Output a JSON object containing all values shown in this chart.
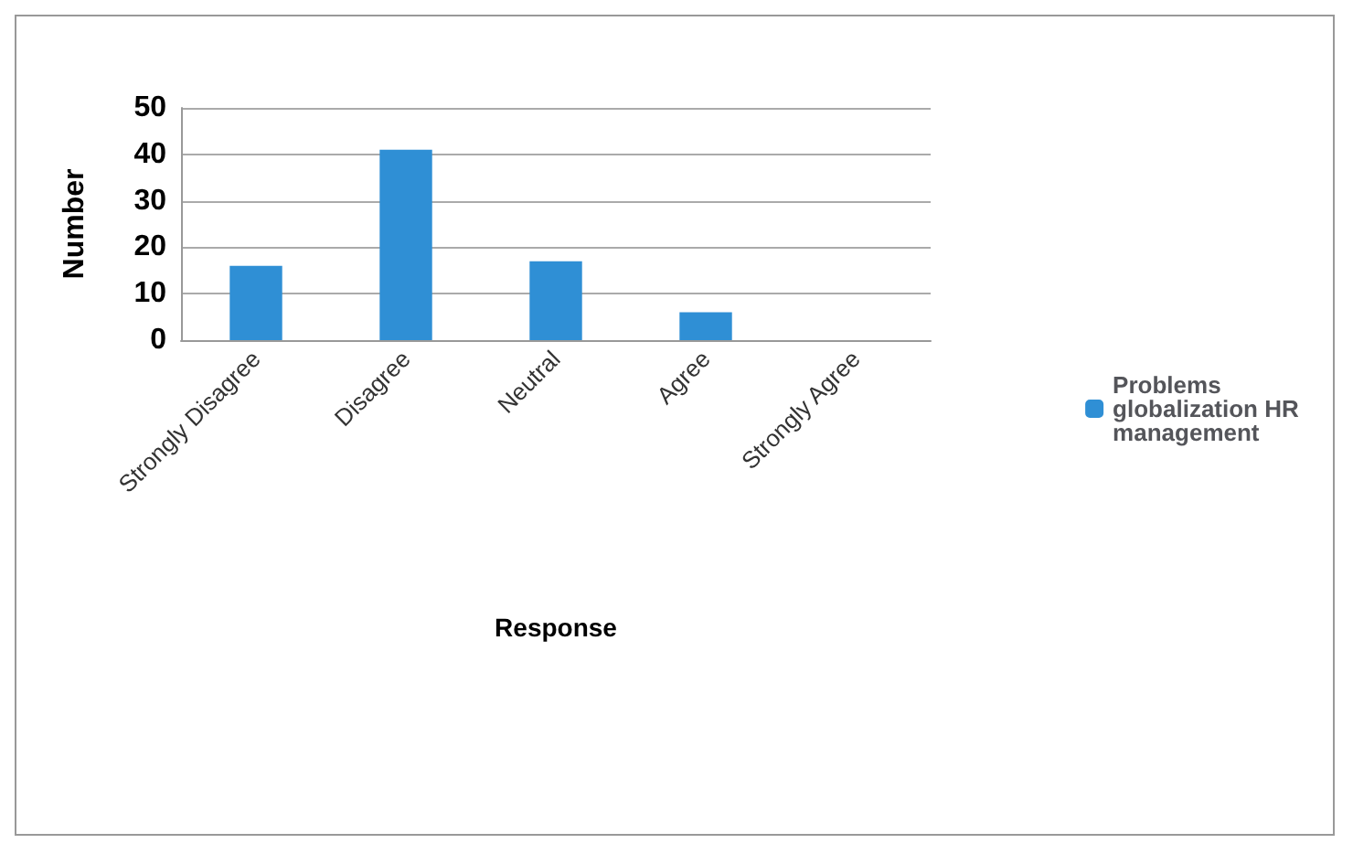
{
  "chart_data": {
    "type": "bar",
    "xlabel": "Response",
    "ylabel": "Number",
    "categories": [
      "Strongly Disagree",
      "Disagree",
      "Neutral",
      "Agree",
      "Strongly Agree"
    ],
    "series": [
      {
        "name": "Problems globalization HR management",
        "color": "#2f8fd5",
        "values": [
          16,
          41,
          17,
          6,
          0
        ]
      }
    ],
    "ylim": [
      0,
      50
    ],
    "yticks": [
      0,
      10,
      20,
      30,
      40,
      50
    ],
    "grid": "y",
    "legend": "right"
  }
}
